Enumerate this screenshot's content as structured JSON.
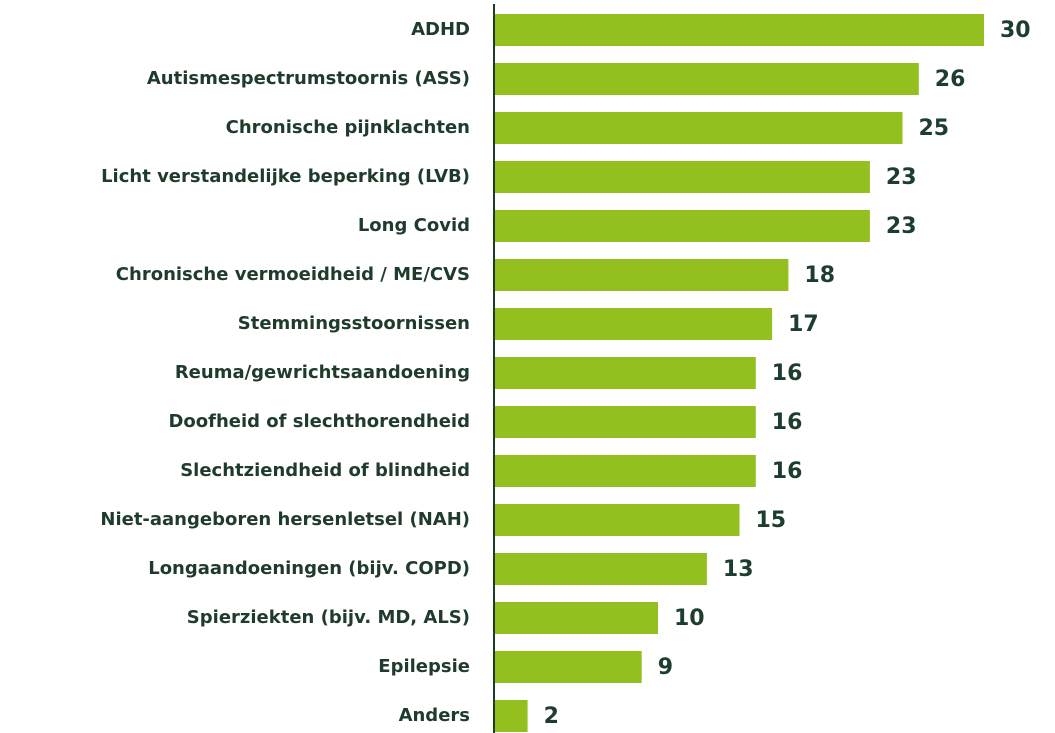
{
  "chart_data": {
    "type": "bar",
    "orientation": "horizontal",
    "categories": [
      "ADHD",
      "Autismespectrumstoornis (ASS)",
      "Chronische pijnklachten",
      "Licht verstandelijke beperking (LVB)",
      "Long Covid",
      "Chronische vermoeidheid / ME/CVS",
      "Stemmingsstoornissen",
      "Reuma/gewrichtsaandoening",
      "Doofheid of slechthorendheid",
      "Slechtziendheid of blindheid",
      "Niet-aangeboren hersenletsel (NAH)",
      "Longaandoeningen (bijv. COPD)",
      "Spierziekten (bijv. MD, ALS)",
      "Epilepsie",
      "Anders"
    ],
    "values": [
      30,
      26,
      25,
      23,
      23,
      18,
      17,
      16,
      16,
      16,
      15,
      13,
      10,
      9,
      2
    ],
    "color": "#93c01f"
  }
}
